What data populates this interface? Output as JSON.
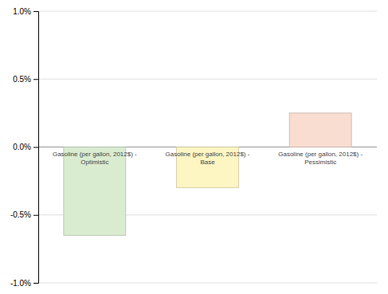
{
  "chart_data": {
    "type": "bar",
    "categories": [
      "Gasoline (per gallon, 2012$) -\nOptimistic",
      "Gasoline (per gallon, 2012$) -\nBase",
      "Gasoline (per gallon, 2012$) -\nPessimistic"
    ],
    "values": [
      -0.0065,
      -0.003,
      0.0025
    ],
    "colors": [
      "#daecd0",
      "#fdf5c2",
      "#f9ddd0"
    ],
    "ylim": [
      -0.01,
      0.01
    ],
    "yticks": [
      {
        "value": -0.01,
        "label": "-1.0%"
      },
      {
        "value": -0.005,
        "label": "-0.5%"
      },
      {
        "value": 0.0,
        "label": "0.0%"
      },
      {
        "value": 0.005,
        "label": "0.5%"
      },
      {
        "value": 0.01,
        "label": "1.0%"
      }
    ],
    "grid": true
  }
}
